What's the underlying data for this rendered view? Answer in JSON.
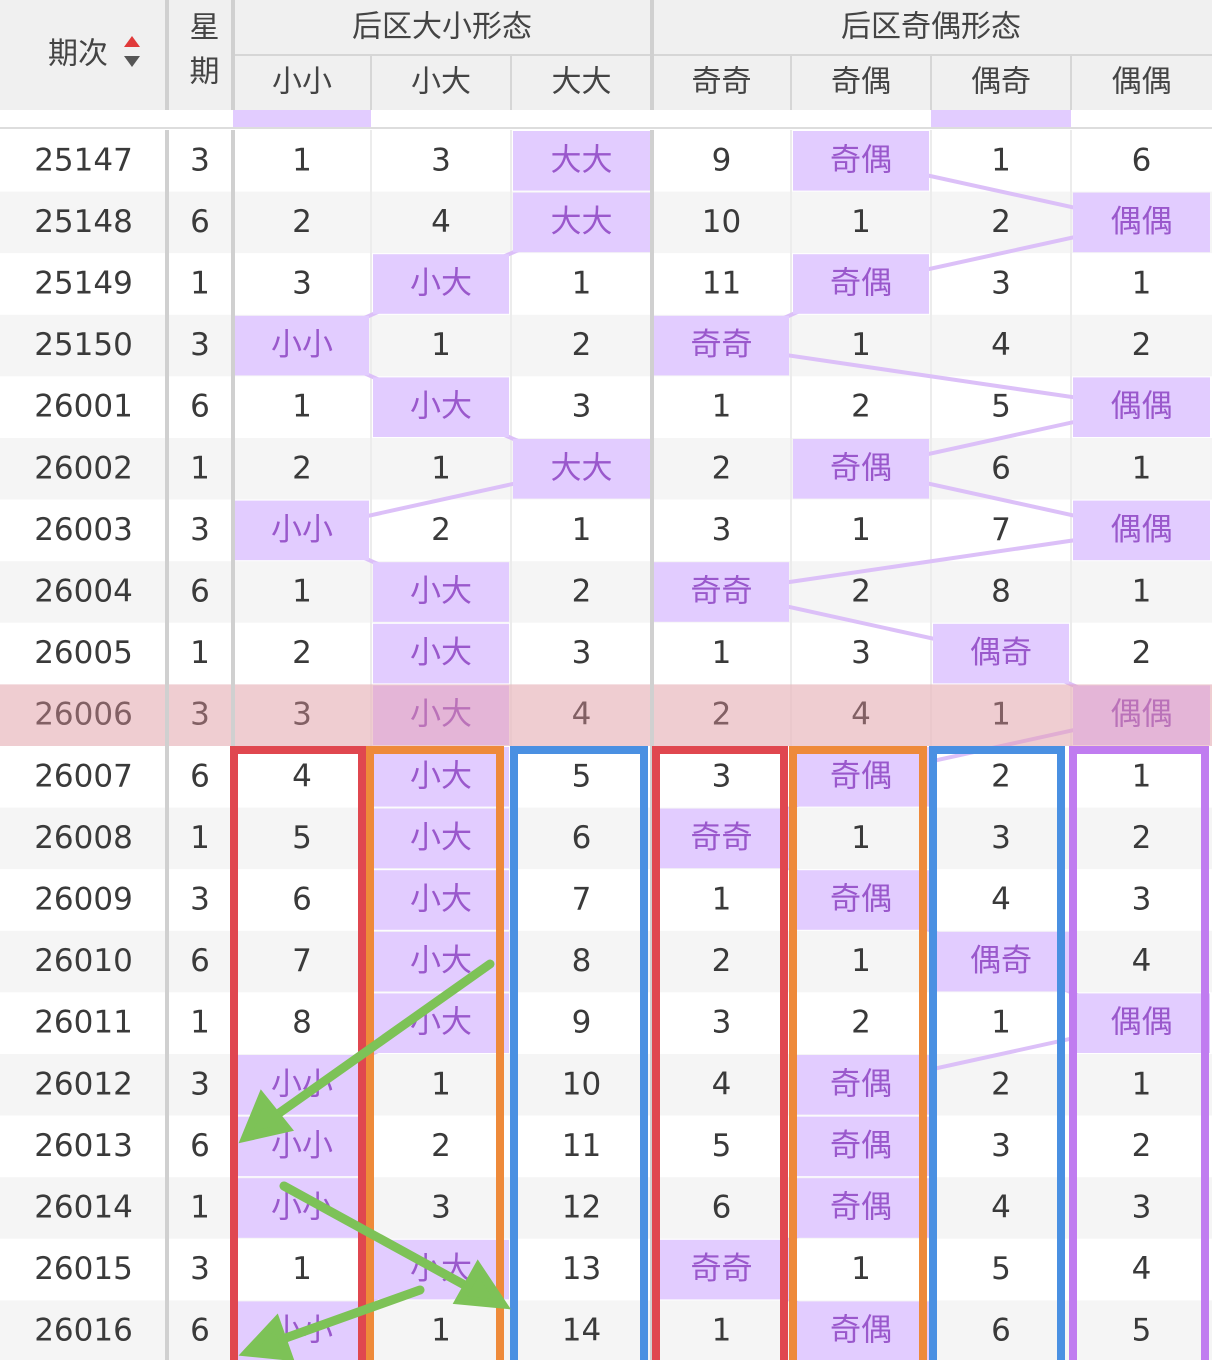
{
  "header": {
    "period": "期次",
    "weekday": "星期",
    "groups": [
      "后区大小形态",
      "后区奇偶形态"
    ],
    "columns": [
      "小小",
      "小大",
      "大大",
      "奇奇",
      "奇偶",
      "偶奇",
      "偶偶"
    ]
  },
  "table": {
    "rows": [
      [
        "25147",
        "3",
        "1",
        "3",
        "大大",
        "9",
        "奇偶",
        "1",
        "6"
      ],
      [
        "25148",
        "6",
        "2",
        "4",
        "大大",
        "10",
        "1",
        "2",
        "偶偶"
      ],
      [
        "25149",
        "1",
        "3",
        "小大",
        "1",
        "11",
        "奇偶",
        "3",
        "1"
      ],
      [
        "25150",
        "3",
        "小小",
        "1",
        "2",
        "奇奇",
        "1",
        "4",
        "2"
      ],
      [
        "26001",
        "6",
        "1",
        "小大",
        "3",
        "1",
        "2",
        "5",
        "偶偶"
      ],
      [
        "26002",
        "1",
        "2",
        "1",
        "大大",
        "2",
        "奇偶",
        "6",
        "1"
      ],
      [
        "26003",
        "3",
        "小小",
        "2",
        "1",
        "3",
        "1",
        "7",
        "偶偶"
      ],
      [
        "26004",
        "6",
        "1",
        "小大",
        "2",
        "奇奇",
        "2",
        "8",
        "1"
      ],
      [
        "26005",
        "1",
        "2",
        "小大",
        "3",
        "1",
        "3",
        "偶奇",
        "2"
      ],
      [
        "26006",
        "3",
        "3",
        "小大",
        "4",
        "2",
        "4",
        "1",
        "偶偶"
      ],
      [
        "26007",
        "6",
        "4",
        "小大",
        "5",
        "3",
        "奇偶",
        "2",
        "1"
      ],
      [
        "26008",
        "1",
        "5",
        "小大",
        "6",
        "奇奇",
        "1",
        "3",
        "2"
      ],
      [
        "26009",
        "3",
        "6",
        "小大",
        "7",
        "1",
        "奇偶",
        "4",
        "3"
      ],
      [
        "26010",
        "6",
        "7",
        "小大",
        "8",
        "2",
        "1",
        "偶奇",
        "4"
      ],
      [
        "26011",
        "1",
        "8",
        "小大",
        "9",
        "3",
        "2",
        "1",
        "偶偶"
      ],
      [
        "26012",
        "3",
        "小小",
        "1",
        "10",
        "4",
        "奇偶",
        "2",
        "1"
      ],
      [
        "26013",
        "6",
        "小小",
        "2",
        "11",
        "5",
        "奇偶",
        "3",
        "2"
      ],
      [
        "26014",
        "1",
        "小小",
        "3",
        "12",
        "6",
        "奇偶",
        "4",
        "3"
      ],
      [
        "26015",
        "3",
        "1",
        "小大",
        "13",
        "奇奇",
        "1",
        "5",
        "4"
      ],
      [
        "26016",
        "6",
        "小小",
        "1",
        "14",
        "1",
        "奇偶",
        "6",
        "5"
      ]
    ],
    "highlight_row": "26006"
  }
}
